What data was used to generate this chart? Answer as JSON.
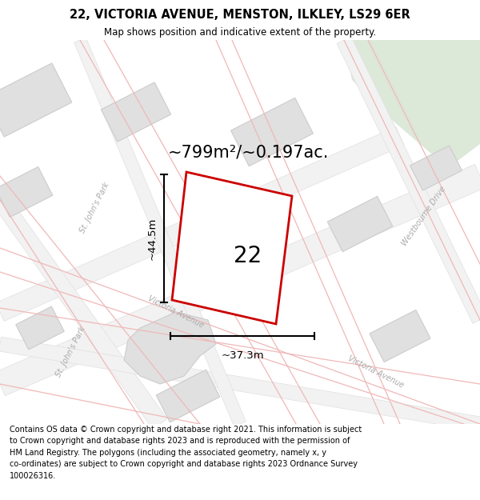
{
  "title": "22, VICTORIA AVENUE, MENSTON, ILKLEY, LS29 6ER",
  "subtitle": "Map shows position and indicative extent of the property.",
  "footer_text": "Contains OS data © Crown copyright and database right 2021. This information is subject\nto Crown copyright and database rights 2023 and is reproduced with the permission of\nHM Land Registry. The polygons (including the associated geometry, namely x, y\nco-ordinates) are subject to Crown copyright and database rights 2023 Ordnance Survey\n100026316.",
  "area_text": "~799m²/~0.197ac.",
  "label_22": "22",
  "dim_vertical": "~44.5m",
  "dim_horizontal": "~37.3m",
  "map_bg": "#f7f7f7",
  "road_bg": "#eeeeee",
  "building_color": "#e0e0e0",
  "building_edge_color": "#cccccc",
  "red_plot_color": "#cc0000",
  "plot_fill": "#f0f0f0",
  "green_area_color": "#dce8d8",
  "road_line_color": "#f0b8b8",
  "street_label_color": "#aaaaaa",
  "title_fontsize": 10.5,
  "subtitle_fontsize": 8.5,
  "footer_fontsize": 7.0,
  "area_text_fontsize": 15,
  "label_fontsize": 20,
  "dim_fontsize": 9.5
}
